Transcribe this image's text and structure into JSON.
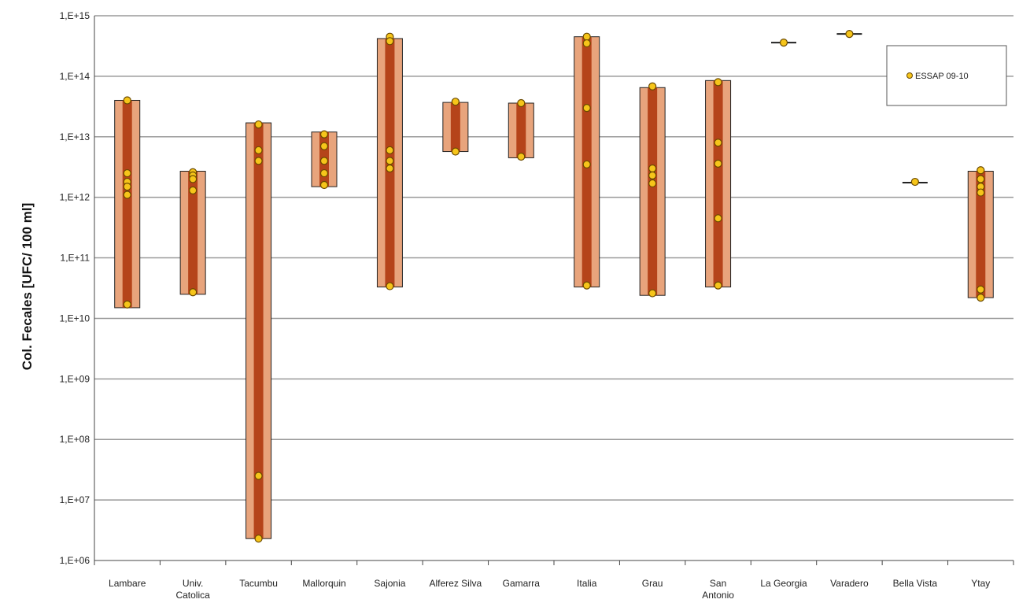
{
  "chart_data": {
    "type": "range",
    "ylabel": "Col. Fecales [UFC/ 100 ml]",
    "yscale": "log",
    "ylim": [
      1000000,
      1000000000000000
    ],
    "ytick_labels": [
      "1,E+06",
      "1,E+07",
      "1,E+08",
      "1,E+09",
      "1,E+10",
      "1,E+11",
      "1,E+12",
      "1,E+13",
      "1,E+14",
      "1,E+15"
    ],
    "grid": true,
    "legend": {
      "label": "ESSAP 09-10",
      "placement": "top-right"
    },
    "categories": [
      {
        "label": [
          "Lambare"
        ],
        "min": 15000000000.0,
        "max": 40000000000000.0,
        "points": [
          40000000000000.0,
          2500000000000.0,
          1800000000000.0,
          1500000000000.0,
          1100000000000.0,
          17000000000.0
        ]
      },
      {
        "label": [
          "Univ.",
          "Catolica"
        ],
        "min": 25000000000.0,
        "max": 2700000000000.0,
        "points": [
          2600000000000.0,
          2300000000000.0,
          2000000000000.0,
          1300000000000.0,
          27000000000.0
        ]
      },
      {
        "label": [
          "Tacumbu"
        ],
        "min": 2300000.0,
        "max": 17000000000000.0,
        "points": [
          16000000000000.0,
          6000000000000.0,
          4000000000000.0,
          25000000.0,
          2300000.0
        ]
      },
      {
        "label": [
          "Mallorquin"
        ],
        "min": 1500000000000.0,
        "max": 12000000000000.0,
        "points": [
          11000000000000.0,
          7000000000000.0,
          4000000000000.0,
          2500000000000.0,
          1600000000000.0
        ]
      },
      {
        "label": [
          "Sajonia"
        ],
        "min": 33000000000.0,
        "max": 420000000000000.0,
        "points": [
          450000000000000.0,
          380000000000000.0,
          6000000000000.0,
          4000000000000.0,
          3000000000000.0,
          34000000000.0
        ]
      },
      {
        "label": [
          "Alferez Silva"
        ],
        "min": 5700000000000.0,
        "max": 37000000000000.0,
        "points": [
          38000000000000.0,
          5700000000000.0
        ]
      },
      {
        "label": [
          "Gamarra"
        ],
        "min": 4500000000000.0,
        "max": 36000000000000.0,
        "points": [
          36000000000000.0,
          4700000000000.0
        ]
      },
      {
        "label": [
          "Italia"
        ],
        "min": 33000000000.0,
        "max": 450000000000000.0,
        "points": [
          450000000000000.0,
          350000000000000.0,
          30000000000000.0,
          3500000000000.0,
          35000000000.0
        ]
      },
      {
        "label": [
          "Grau"
        ],
        "min": 24000000000.0,
        "max": 65000000000000.0,
        "points": [
          68000000000000.0,
          3000000000000.0,
          2300000000000.0,
          1700000000000.0,
          26000000000.0
        ]
      },
      {
        "label": [
          "San",
          "Antonio"
        ],
        "min": 33000000000.0,
        "max": 85000000000000.0,
        "points": [
          80000000000000.0,
          8000000000000.0,
          3600000000000.0,
          450000000000.0,
          35000000000.0
        ]
      },
      {
        "label": [
          "La Georgia"
        ],
        "min": 360000000000000.0,
        "max": 360000000000000.0,
        "points": [
          360000000000000.0
        ]
      },
      {
        "label": [
          "Varadero"
        ],
        "min": 500000000000000.0,
        "max": 500000000000000.0,
        "points": [
          500000000000000.0
        ]
      },
      {
        "label": [
          "Bella Vista"
        ],
        "min": 1750000000000.0,
        "max": 1750000000000.0,
        "points": [
          1800000000000.0
        ]
      },
      {
        "label": [
          "Ytay"
        ],
        "min": 22000000000.0,
        "max": 2700000000000.0,
        "points": [
          2800000000000.0,
          2000000000000.0,
          1500000000000.0,
          1200000000000.0,
          30000000000.0,
          22000000000.0
        ]
      }
    ]
  },
  "colors": {
    "bar_outer": "#e8a47c",
    "bar_inner": "#b5441a",
    "bar_outline": "#222222",
    "point_fill": "#f6c51a",
    "point_stroke": "#6b4a00",
    "grid": "#9a9a9a"
  }
}
